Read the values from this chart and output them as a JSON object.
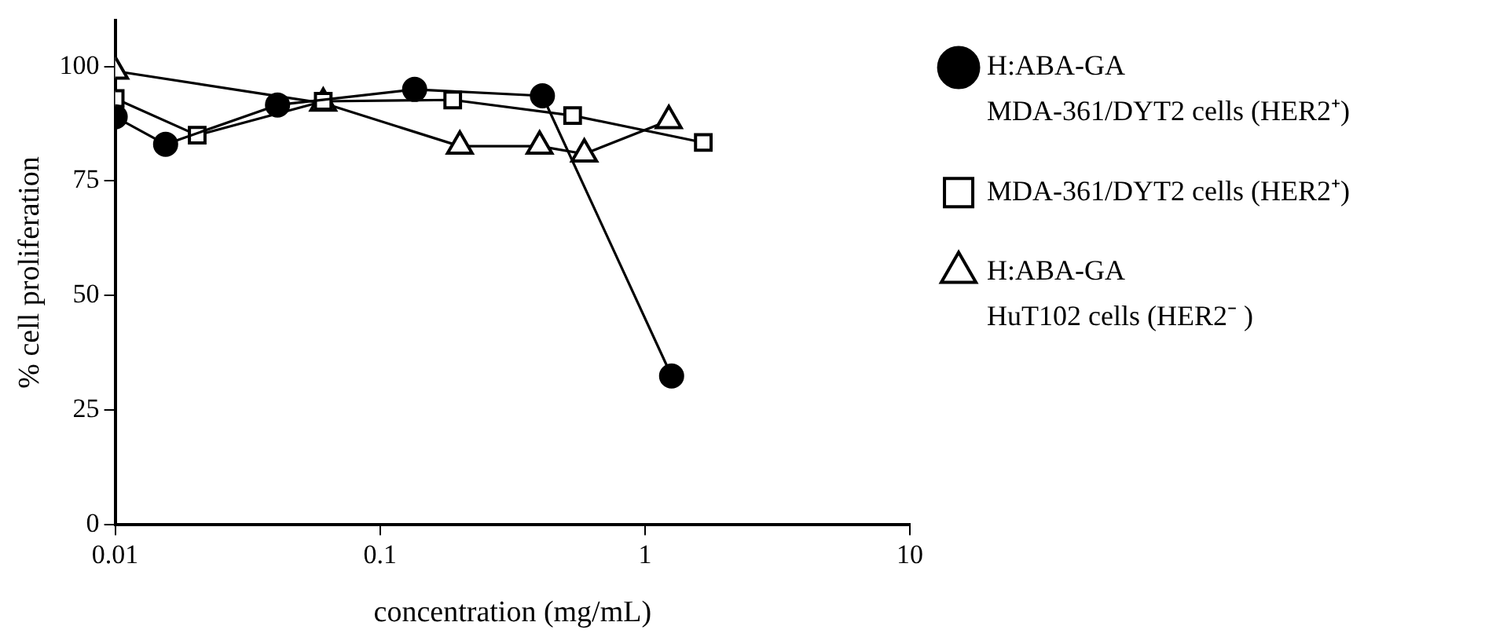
{
  "chart_data": {
    "type": "line",
    "xlabel": "concentration (mg/mL)",
    "ylabel": "% cell proliferation",
    "log": "x",
    "xlim": [
      0.01,
      10
    ],
    "xticks": [
      0.01,
      0.1,
      1,
      10
    ],
    "ylim": [
      0,
      110
    ],
    "yticks": [
      0,
      25,
      50,
      75,
      100
    ],
    "grid": false,
    "legend": "right",
    "line_style": "solid",
    "series": [
      {
        "name": "H:ABA-GA\nMDA-361/DYT2 cells (HER2⁺)",
        "color": "#000000",
        "marker": "circle",
        "x": [
          0.01,
          0.0155,
          0.041,
          0.135,
          0.41,
          1.26
        ],
        "values": [
          89,
          83,
          91.6,
          95,
          93.6,
          32.4
        ]
      },
      {
        "name": "MDA-361/DYT2 cells (HER2⁺)",
        "color": "#000000",
        "marker": "square",
        "x": [
          0.01,
          0.0204,
          0.061,
          0.188,
          0.533,
          1.66
        ],
        "values": [
          93,
          85,
          92.4,
          92.7,
          89.3,
          83.4
        ]
      },
      {
        "name": "H:ABA-GA\nHuT102 cells (HER2⁻ )",
        "color": "#000000",
        "marker": "triangle",
        "x": [
          0.01,
          0.061,
          0.2,
          0.4,
          0.59,
          1.23
        ],
        "values": [
          99,
          92,
          82.6,
          82.6,
          80.9,
          88.2
        ]
      }
    ]
  }
}
